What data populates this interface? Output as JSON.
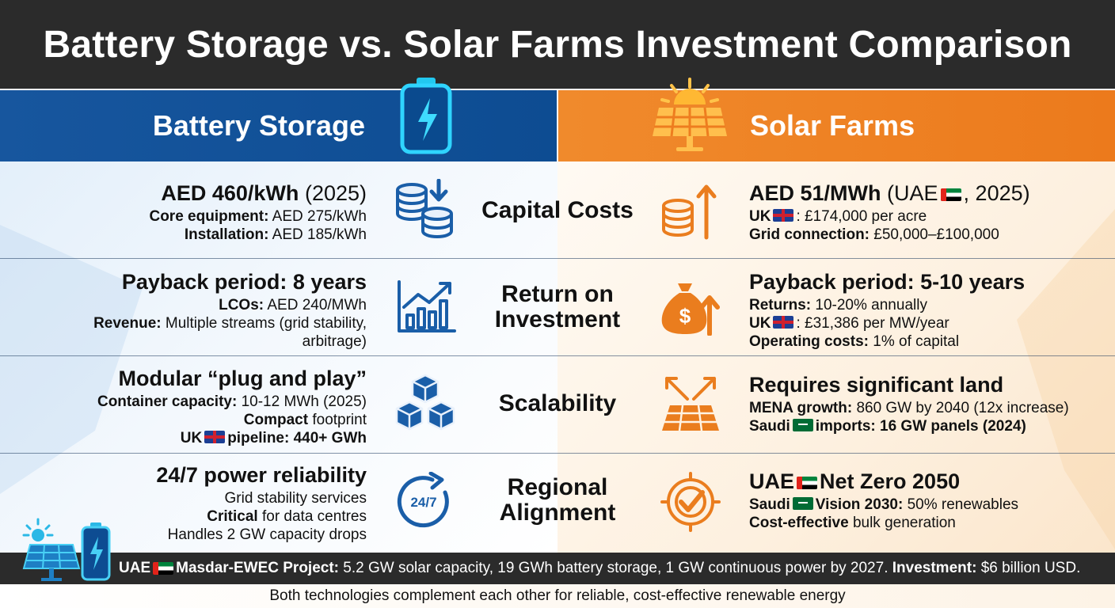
{
  "title": "Battery Storage vs. Solar Farms Investment Comparison",
  "colors": {
    "battery_blue": "#0d4c92",
    "solar_orange": "#ee7d1f",
    "dark_bar": "#2b2b2b",
    "icon_blue": "#1a5ea8",
    "icon_orange": "#ea7d1e"
  },
  "battery": {
    "header": "Battery Storage",
    "icon": "battery-icon"
  },
  "solar": {
    "header": "Solar Farms",
    "icon": "solar-panel-icon"
  },
  "rows": [
    {
      "category": "Capital Costs",
      "battery_icon": "coins-down-icon",
      "solar_icon": "coins-up-icon",
      "battery": {
        "headline": "AED 460/kWh",
        "headline_extra": "(2025)",
        "lines": [
          {
            "bold": "Core equipment:",
            "text": "AED 275/kWh"
          },
          {
            "bold": "Installation:",
            "text": "AED 185/kWh"
          }
        ]
      },
      "solar": {
        "headline": "AED 51/MWh",
        "headline_extra_pre": "(UAE",
        "headline_extra_post": ", 2025)",
        "lines": [
          {
            "bold": "UK",
            "text": ": £174,000 per acre"
          },
          {
            "bold": "Grid connection:",
            "text": "£50,000–£100,000"
          }
        ]
      }
    },
    {
      "category": "Return on Investment",
      "battery_icon": "growth-chart-icon",
      "solar_icon": "money-bag-icon",
      "battery": {
        "headline": "Payback period: 8 years",
        "lines": [
          {
            "bold": "LCOs:",
            "text": "AED 240/MWh"
          },
          {
            "bold": "Revenue:",
            "text": "Multiple streams (grid stability,"
          },
          {
            "bold": "",
            "text": "arbitrage)"
          }
        ]
      },
      "solar": {
        "headline": "Payback period: 5-10 years",
        "lines": [
          {
            "bold": "Returns:",
            "text": "10-20% annually"
          },
          {
            "bold": "UK",
            "text": ": £31,386 per MW/year"
          },
          {
            "bold": "Operating costs:",
            "text": "1% of capital"
          }
        ]
      }
    },
    {
      "category": "Scalability",
      "battery_icon": "modular-cubes-icon",
      "solar_icon": "panel-expand-icon",
      "battery": {
        "headline": "Modular “plug and play”",
        "lines": [
          {
            "bold": "Container capacity:",
            "text": "10-12 MWh (2025)"
          },
          {
            "bold": "Compact",
            "text": "footprint"
          },
          {
            "bold": "UK",
            "text": "pipeline: 440+ GWh"
          }
        ]
      },
      "solar": {
        "headline": "Requires significant land",
        "lines": [
          {
            "bold": "MENA growth:",
            "text": "860 GW by 2040 (12x increase)"
          },
          {
            "bold": "Saudi",
            "text": "imports: 16 GW panels (2024)"
          }
        ]
      }
    },
    {
      "category": "Regional Alignment",
      "battery_icon": "clock-24-7-icon",
      "solar_icon": "target-check-icon",
      "battery": {
        "headline": "24/7 power reliability",
        "lines": [
          {
            "bold": "",
            "text": "Grid stability services"
          },
          {
            "bold": "Critical",
            "text": "for data centres"
          },
          {
            "bold": "",
            "text": "Handles 2 GW capacity drops"
          }
        ]
      },
      "solar": {
        "headline_pre": "UAE",
        "headline": "Net Zero 2050",
        "lines": [
          {
            "bold": "Saudi",
            "bold2": "Vision 2030:",
            "text": "50% renewables"
          },
          {
            "bold": "Cost-effective",
            "text": "bulk generation"
          }
        ]
      }
    }
  ],
  "footer": {
    "project_bold": "UAE",
    "project_name": "Masdar-EWEC Project:",
    "project_text": "5.2 GW solar capacity, 19 GWh battery storage, 1 GW continuous power by 2027.",
    "investment_label": "Investment:",
    "investment_value": "$6 billion USD."
  },
  "note": "Both technologies complement each other for reliable, cost-effective renewable energy"
}
